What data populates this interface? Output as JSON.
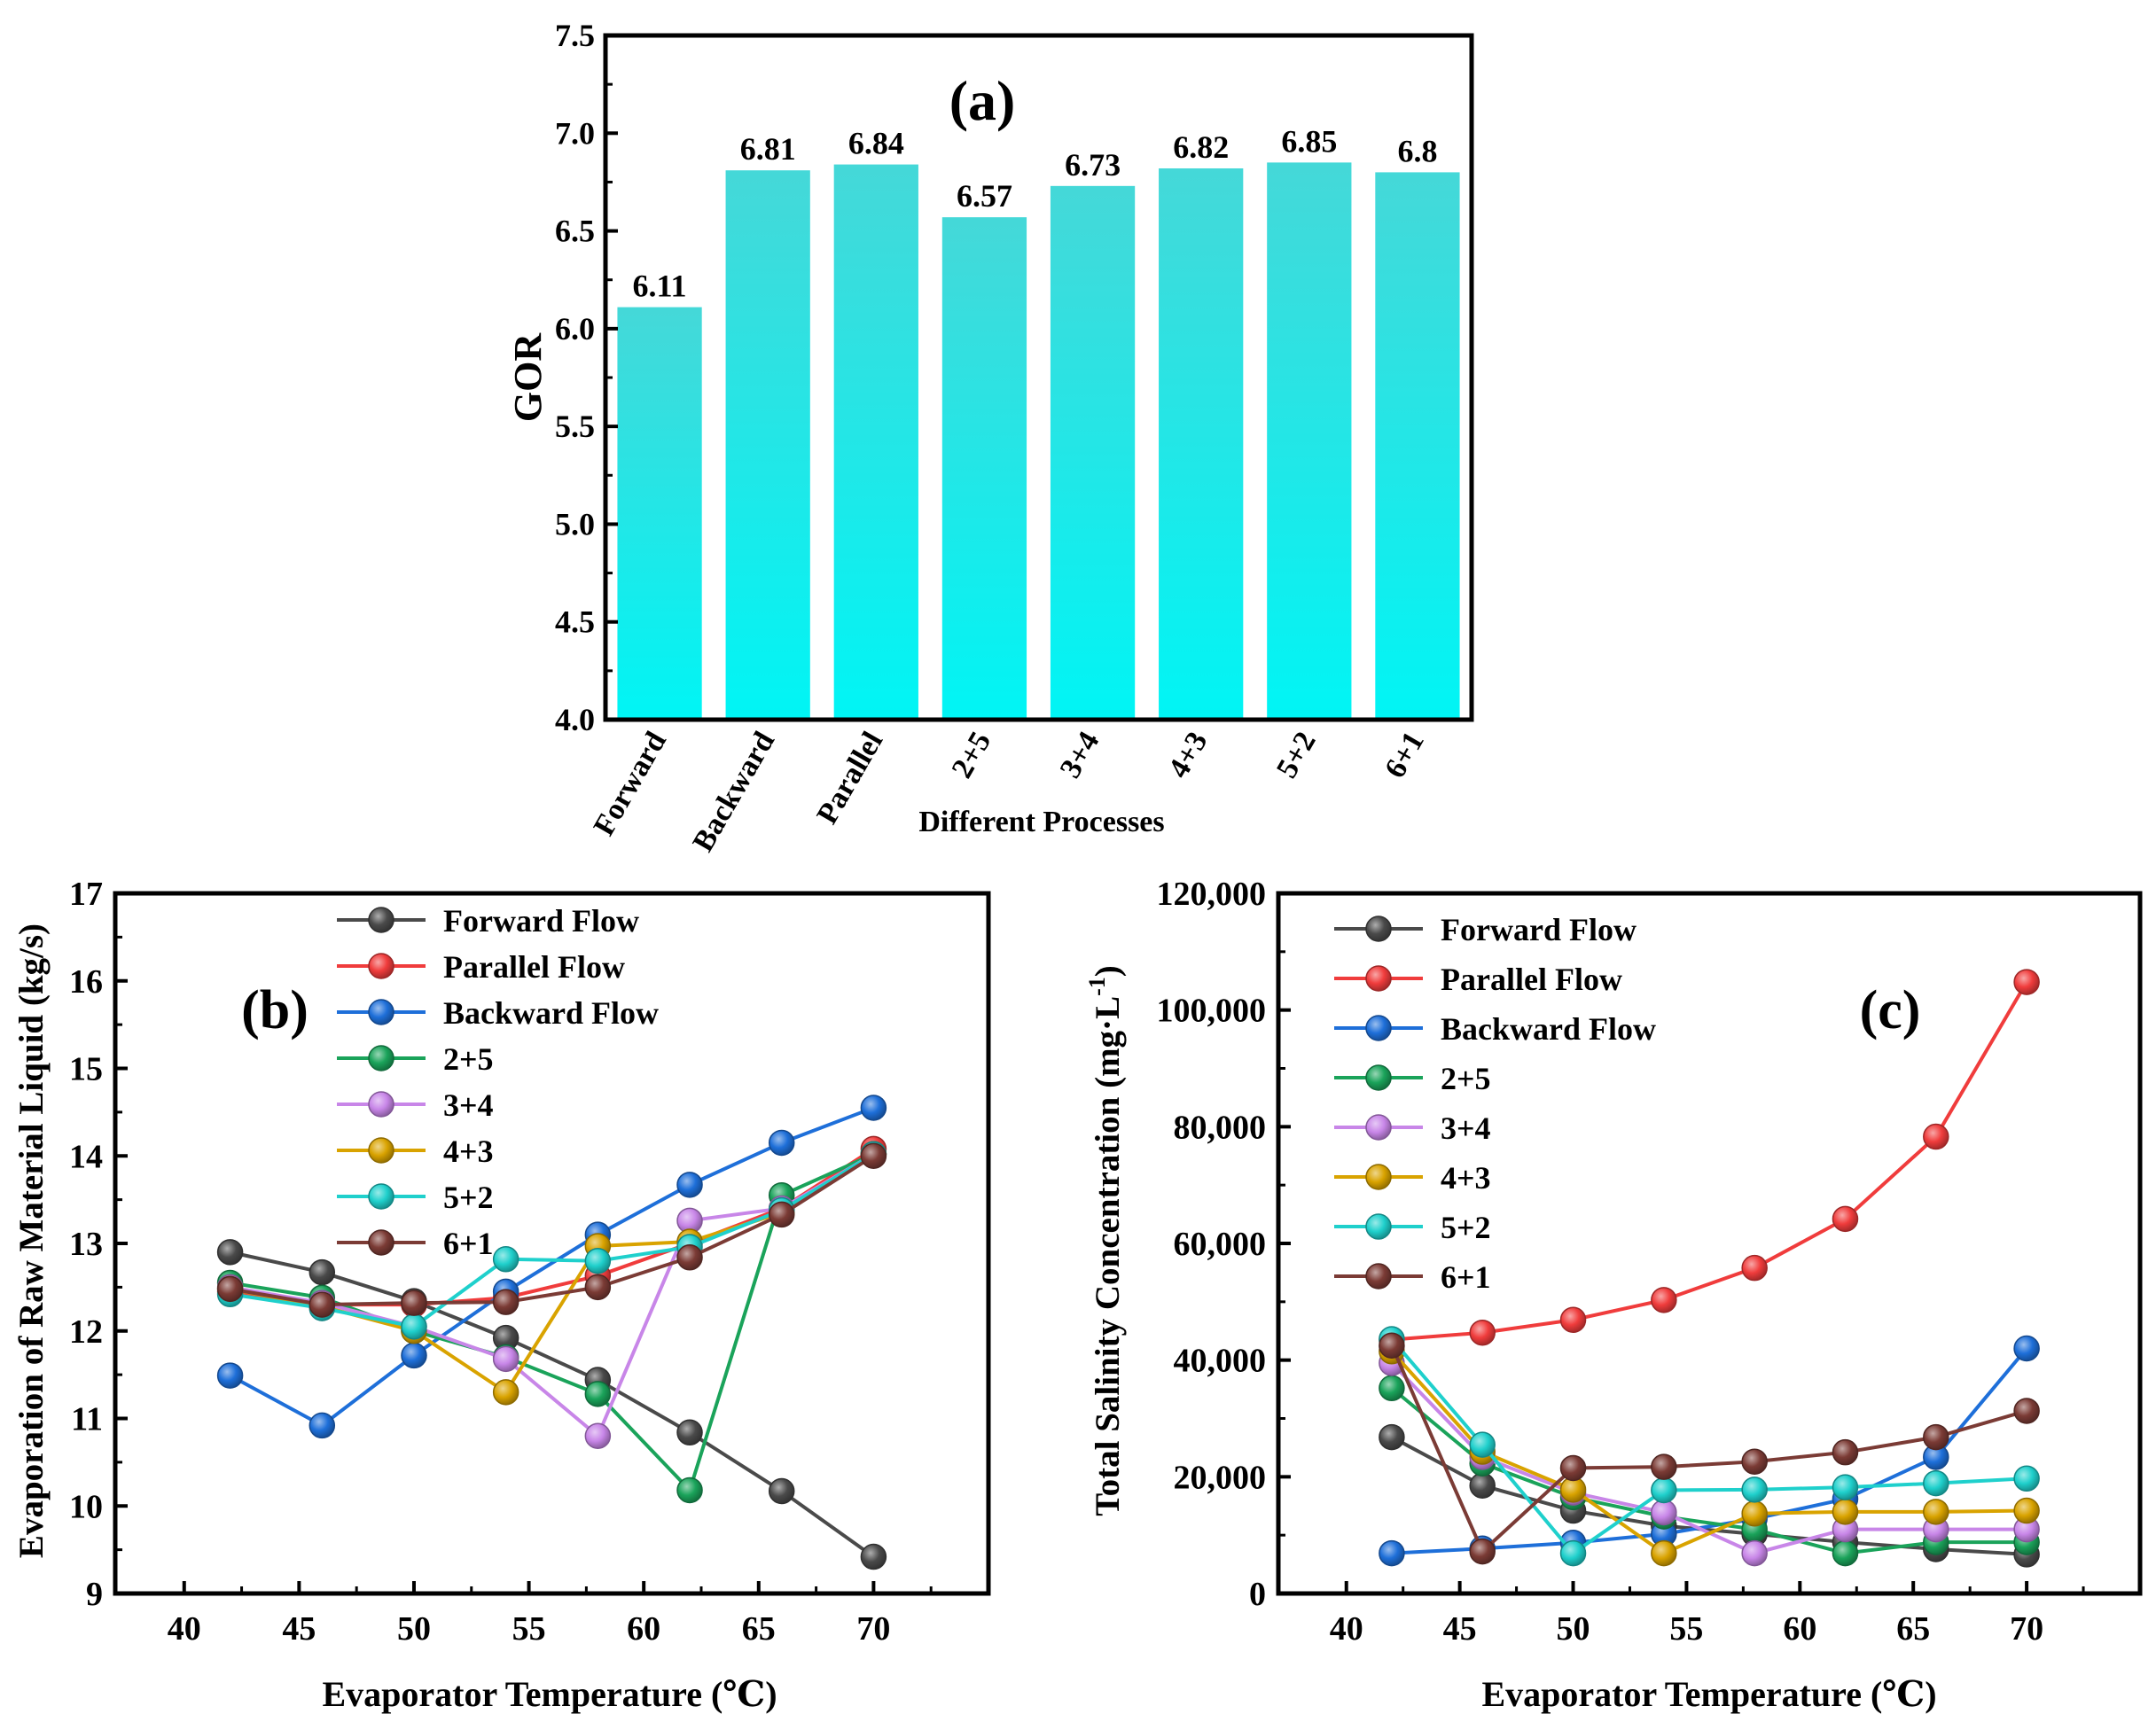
{
  "chart_data": [
    {
      "id": "a",
      "panel_label": "(a)",
      "type": "bar",
      "title": "",
      "xlabel": "Different Processes",
      "ylabel": "GOR",
      "ylim": [
        4.0,
        7.5
      ],
      "yticks": [
        "4.0",
        "4.5",
        "5.0",
        "5.5",
        "6.0",
        "6.5",
        "7.0",
        "7.5"
      ],
      "categories": [
        "Forward",
        "Backward",
        "Parallel",
        "2+5",
        "3+4",
        "4+3",
        "5+2",
        "6+1"
      ],
      "values": [
        6.11,
        6.81,
        6.84,
        6.57,
        6.73,
        6.82,
        6.85,
        6.8
      ],
      "value_labels": [
        "6.11",
        "6.81",
        "6.84",
        "6.57",
        "6.73",
        "6.82",
        "6.85",
        "6.8"
      ],
      "bar_color_top": "#45d8d8",
      "bar_color_bottom": "#00f5f5"
    },
    {
      "id": "b",
      "panel_label": "(b)",
      "type": "line",
      "xlabel": "Evaporator Temperature (℃)",
      "ylabel": "Evaporation of Raw Material Liquid (kg/s)",
      "xlim": [
        37,
        75
      ],
      "ylim": [
        9,
        17
      ],
      "xticks": [
        "40",
        "45",
        "50",
        "55",
        "60",
        "65",
        "70"
      ],
      "yticks": [
        "9",
        "10",
        "11",
        "12",
        "13",
        "14",
        "15",
        "16",
        "17"
      ],
      "x": [
        42,
        46,
        50,
        54,
        58,
        62,
        66,
        70
      ],
      "legend": "top-left",
      "series": [
        {
          "name": "Forward Flow",
          "color": "#4a4a4a",
          "values": [
            12.9,
            12.67,
            12.34,
            11.92,
            11.44,
            10.84,
            10.17,
            9.42
          ]
        },
        {
          "name": "Parallel Flow",
          "color": "#f03c3c",
          "values": [
            12.45,
            12.3,
            12.3,
            12.38,
            12.63,
            13.0,
            13.4,
            14.08
          ]
        },
        {
          "name": "Backward Flow",
          "color": "#1e6fd9",
          "values": [
            11.49,
            10.92,
            11.72,
            12.45,
            13.1,
            13.67,
            14.15,
            14.55
          ]
        },
        {
          "name": "2+5",
          "color": "#1aa35a",
          "values": [
            12.55,
            12.38,
            12.0,
            11.7,
            11.28,
            10.18,
            13.55,
            14.02
          ]
        },
        {
          "name": "3+4",
          "color": "#c886e8",
          "values": [
            12.5,
            12.32,
            12.05,
            11.68,
            10.8,
            13.26,
            13.4,
            14.02
          ]
        },
        {
          "name": "4+3",
          "color": "#d9a300",
          "values": [
            12.48,
            12.28,
            12.0,
            11.3,
            12.97,
            13.02,
            13.35,
            14.02
          ]
        },
        {
          "name": "5+2",
          "color": "#1fd0cc",
          "values": [
            12.42,
            12.26,
            12.05,
            12.82,
            12.8,
            12.96,
            13.38,
            14.02
          ]
        },
        {
          "name": "6+1",
          "color": "#7b3b35",
          "values": [
            12.48,
            12.3,
            12.32,
            12.33,
            12.5,
            12.84,
            13.33,
            14.0
          ]
        }
      ]
    },
    {
      "id": "c",
      "panel_label": "(c)",
      "type": "line",
      "xlabel": "Evaporator Temperature (℃)",
      "ylabel": "Total Salinity Concentration (mg·L",
      "ylabel_superscript": "-1",
      "ylabel_suffix": ")",
      "xlim": [
        37,
        75
      ],
      "ylim": [
        0,
        120000
      ],
      "xticks": [
        "40",
        "45",
        "50",
        "55",
        "60",
        "65",
        "70"
      ],
      "yticks": [
        "0",
        "20,000",
        "40,000",
        "60,000",
        "80,000",
        "100,000",
        "120,000"
      ],
      "x": [
        42,
        46,
        50,
        54,
        58,
        62,
        66,
        70
      ],
      "legend": "top-left",
      "series": [
        {
          "name": "Forward Flow",
          "color": "#4a4a4a",
          "values": [
            26800,
            18500,
            14200,
            11600,
            10200,
            8800,
            7600,
            6700
          ]
        },
        {
          "name": "Parallel Flow",
          "color": "#f03c3c",
          "values": [
            43500,
            44700,
            46900,
            50300,
            55800,
            64200,
            78300,
            104800
          ]
        },
        {
          "name": "Backward Flow",
          "color": "#1e6fd9",
          "values": [
            6900,
            7700,
            8700,
            10200,
            12800,
            16200,
            23400,
            42000
          ]
        },
        {
          "name": "2+5",
          "color": "#1aa35a",
          "values": [
            35200,
            22300,
            16500,
            13200,
            11000,
            6900,
            8800,
            8800
          ]
        },
        {
          "name": "3+4",
          "color": "#c886e8",
          "values": [
            39500,
            23400,
            17300,
            13900,
            6900,
            11000,
            11000,
            11000
          ]
        },
        {
          "name": "4+3",
          "color": "#d9a300",
          "values": [
            41500,
            24300,
            17800,
            6900,
            13700,
            14000,
            14000,
            14200
          ]
        },
        {
          "name": "5+2",
          "color": "#1fd0cc",
          "values": [
            43600,
            25500,
            6900,
            17700,
            17800,
            18200,
            18900,
            19700
          ]
        },
        {
          "name": "6+1",
          "color": "#7b3b35",
          "values": [
            42500,
            7200,
            21500,
            21700,
            22600,
            24200,
            26800,
            31300
          ]
        }
      ]
    }
  ]
}
